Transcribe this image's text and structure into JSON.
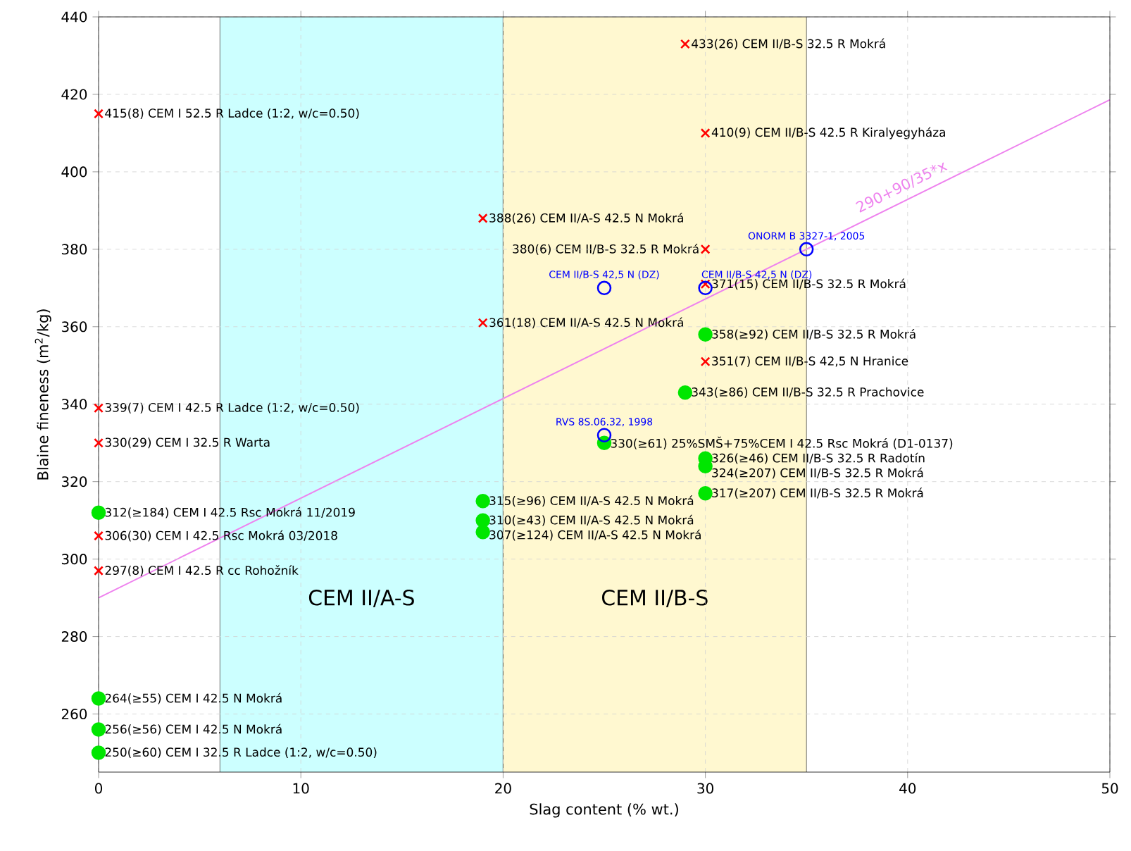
{
  "chart_data": {
    "type": "scatter",
    "xlabel": "Slag content (% wt.)",
    "ylabel": "Blaine fineness (m$^{2}$/kg)",
    "xlim": [
      0,
      50
    ],
    "ylim": [
      245,
      440
    ],
    "xticks": [
      0,
      10,
      20,
      30,
      40,
      50
    ],
    "yticks": [
      260,
      280,
      300,
      320,
      340,
      360,
      380,
      400,
      420,
      440
    ],
    "grid": true,
    "bands": [
      {
        "axis": "x",
        "from": 6,
        "to": 20,
        "label": "CEM II/A-S",
        "color": "#ccffff"
      },
      {
        "axis": "x",
        "from": 20,
        "to": 35,
        "label": "CEM II/B-S",
        "color": "#fff8d0"
      }
    ],
    "series": [
      {
        "marker": "cross",
        "color": "#ff0000",
        "x": [
          0,
          0,
          0,
          0,
          0,
          19,
          19,
          29,
          30,
          30,
          30,
          30
        ],
        "values": [
          415,
          339,
          330,
          306,
          297,
          388,
          361,
          433,
          410,
          380,
          371,
          351
        ]
      },
      {
        "marker": "circle",
        "color": "#00e600",
        "x": [
          0,
          0,
          0,
          0,
          19,
          19,
          19,
          25,
          29,
          30,
          30,
          30,
          30
        ],
        "values": [
          312,
          264,
          256,
          250,
          315,
          310,
          307,
          330,
          343,
          358,
          326,
          324,
          317
        ]
      },
      {
        "marker": "circle",
        "color": "#0000ff",
        "x": [
          25,
          30,
          35,
          25
        ],
        "values": [
          370,
          370,
          380,
          332
        ]
      },
      {
        "type": "line",
        "color": "#ee82ee",
        "x": [
          0,
          50
        ],
        "values": [
          290,
          418.6
        ]
      }
    ],
    "annotations": [
      {
        "text": "415(8) CEM I 52.5 R Ladce (1:2, w/c=0.50)",
        "x": 0,
        "y": 415
      },
      {
        "text": "339(7) CEM I 42.5 R Ladce (1:2, w/c=0.50)",
        "x": 0,
        "y": 339
      },
      {
        "text": "330(29) CEM I 32.5 R Warta",
        "x": 0,
        "y": 330
      },
      {
        "text": "312(≥184) CEM I 42.5 Rsc Mokrá 11/2019",
        "x": 0,
        "y": 312
      },
      {
        "text": "306(30) CEM I 42.5 Rsc Mokrá 03/2018",
        "x": 0,
        "y": 306
      },
      {
        "text": "297(8) CEM I 42.5 R cc Rohožník",
        "x": 0,
        "y": 297
      },
      {
        "text": "264(≥55) CEM I 42.5 N Mokrá",
        "x": 0,
        "y": 264
      },
      {
        "text": "256(≥56) CEM I 42.5 N Mokrá",
        "x": 0,
        "y": 256
      },
      {
        "text": "250(≥60) CEM I 32.5 R Ladce (1:2, w/c=0.50)",
        "x": 0,
        "y": 250
      },
      {
        "text": "388(26) CEM II/A-S 42.5 N Mokrá",
        "x": 19,
        "y": 388
      },
      {
        "text": "361(18) CEM II/A-S 42.5 N Mokrá",
        "x": 19,
        "y": 361
      },
      {
        "text": "315(≥96) CEM II/A-S 42.5 N Mokrá",
        "x": 19,
        "y": 315
      },
      {
        "text": "310(≥43) CEM II/A-S 42.5 N Mokrá",
        "x": 19,
        "y": 310
      },
      {
        "text": "307(≥124) CEM II/A-S 42.5 N Mokrá",
        "x": 19,
        "y": 307
      },
      {
        "text": "330(≥61) 25%SMŠ+75%CEM I 42.5 Rsc Mokrá (D1-0137)",
        "x": 25,
        "y": 330
      },
      {
        "text": "433(26) CEM II/B-S 32.5 R Mokrá",
        "x": 29,
        "y": 433
      },
      {
        "text": "343(≥86) CEM II/B-S 32.5 R Prachovice",
        "x": 29,
        "y": 343
      },
      {
        "text": "410(9) CEM II/B-S 42.5 R Kiralyegyháza",
        "x": 30,
        "y": 410
      },
      {
        "text": "380(6) CEM II/B-S 32.5 R Mokrá",
        "x": 30,
        "y": 380
      },
      {
        "text": "371(15) CEM II/B-S 32.5 R Mokrá",
        "x": 30,
        "y": 371
      },
      {
        "text": "358(≥92) CEM II/B-S 32.5 R Mokrá",
        "x": 30,
        "y": 358
      },
      {
        "text": "351(7) CEM II/B-S 42,5 N Hranice",
        "x": 30,
        "y": 351
      },
      {
        "text": "326(≥46) CEM II/B-S 32.5 R Radotín",
        "x": 30,
        "y": 326
      },
      {
        "text": "324(≥207) CEM II/B-S 32.5 R Mokrá",
        "x": 30,
        "y": 324
      },
      {
        "text": "317(≥207) CEM II/B-S 32.5 R Mokrá",
        "x": 30,
        "y": 317
      },
      {
        "text": "CEM II/B-S 42,5 N (DZ)",
        "x": 25,
        "y": 370
      },
      {
        "text": "CEM II/B-S 42,5 N (DZ)",
        "x": 30,
        "y": 370
      },
      {
        "text": "ONORM B 3327-1, 2005",
        "x": 35,
        "y": 380
      },
      {
        "text": "RVS 8S.06.32, 1998",
        "x": 25,
        "y": 332
      },
      {
        "text": "290+90/35*x",
        "x": 40,
        "y": 392.9
      }
    ]
  }
}
